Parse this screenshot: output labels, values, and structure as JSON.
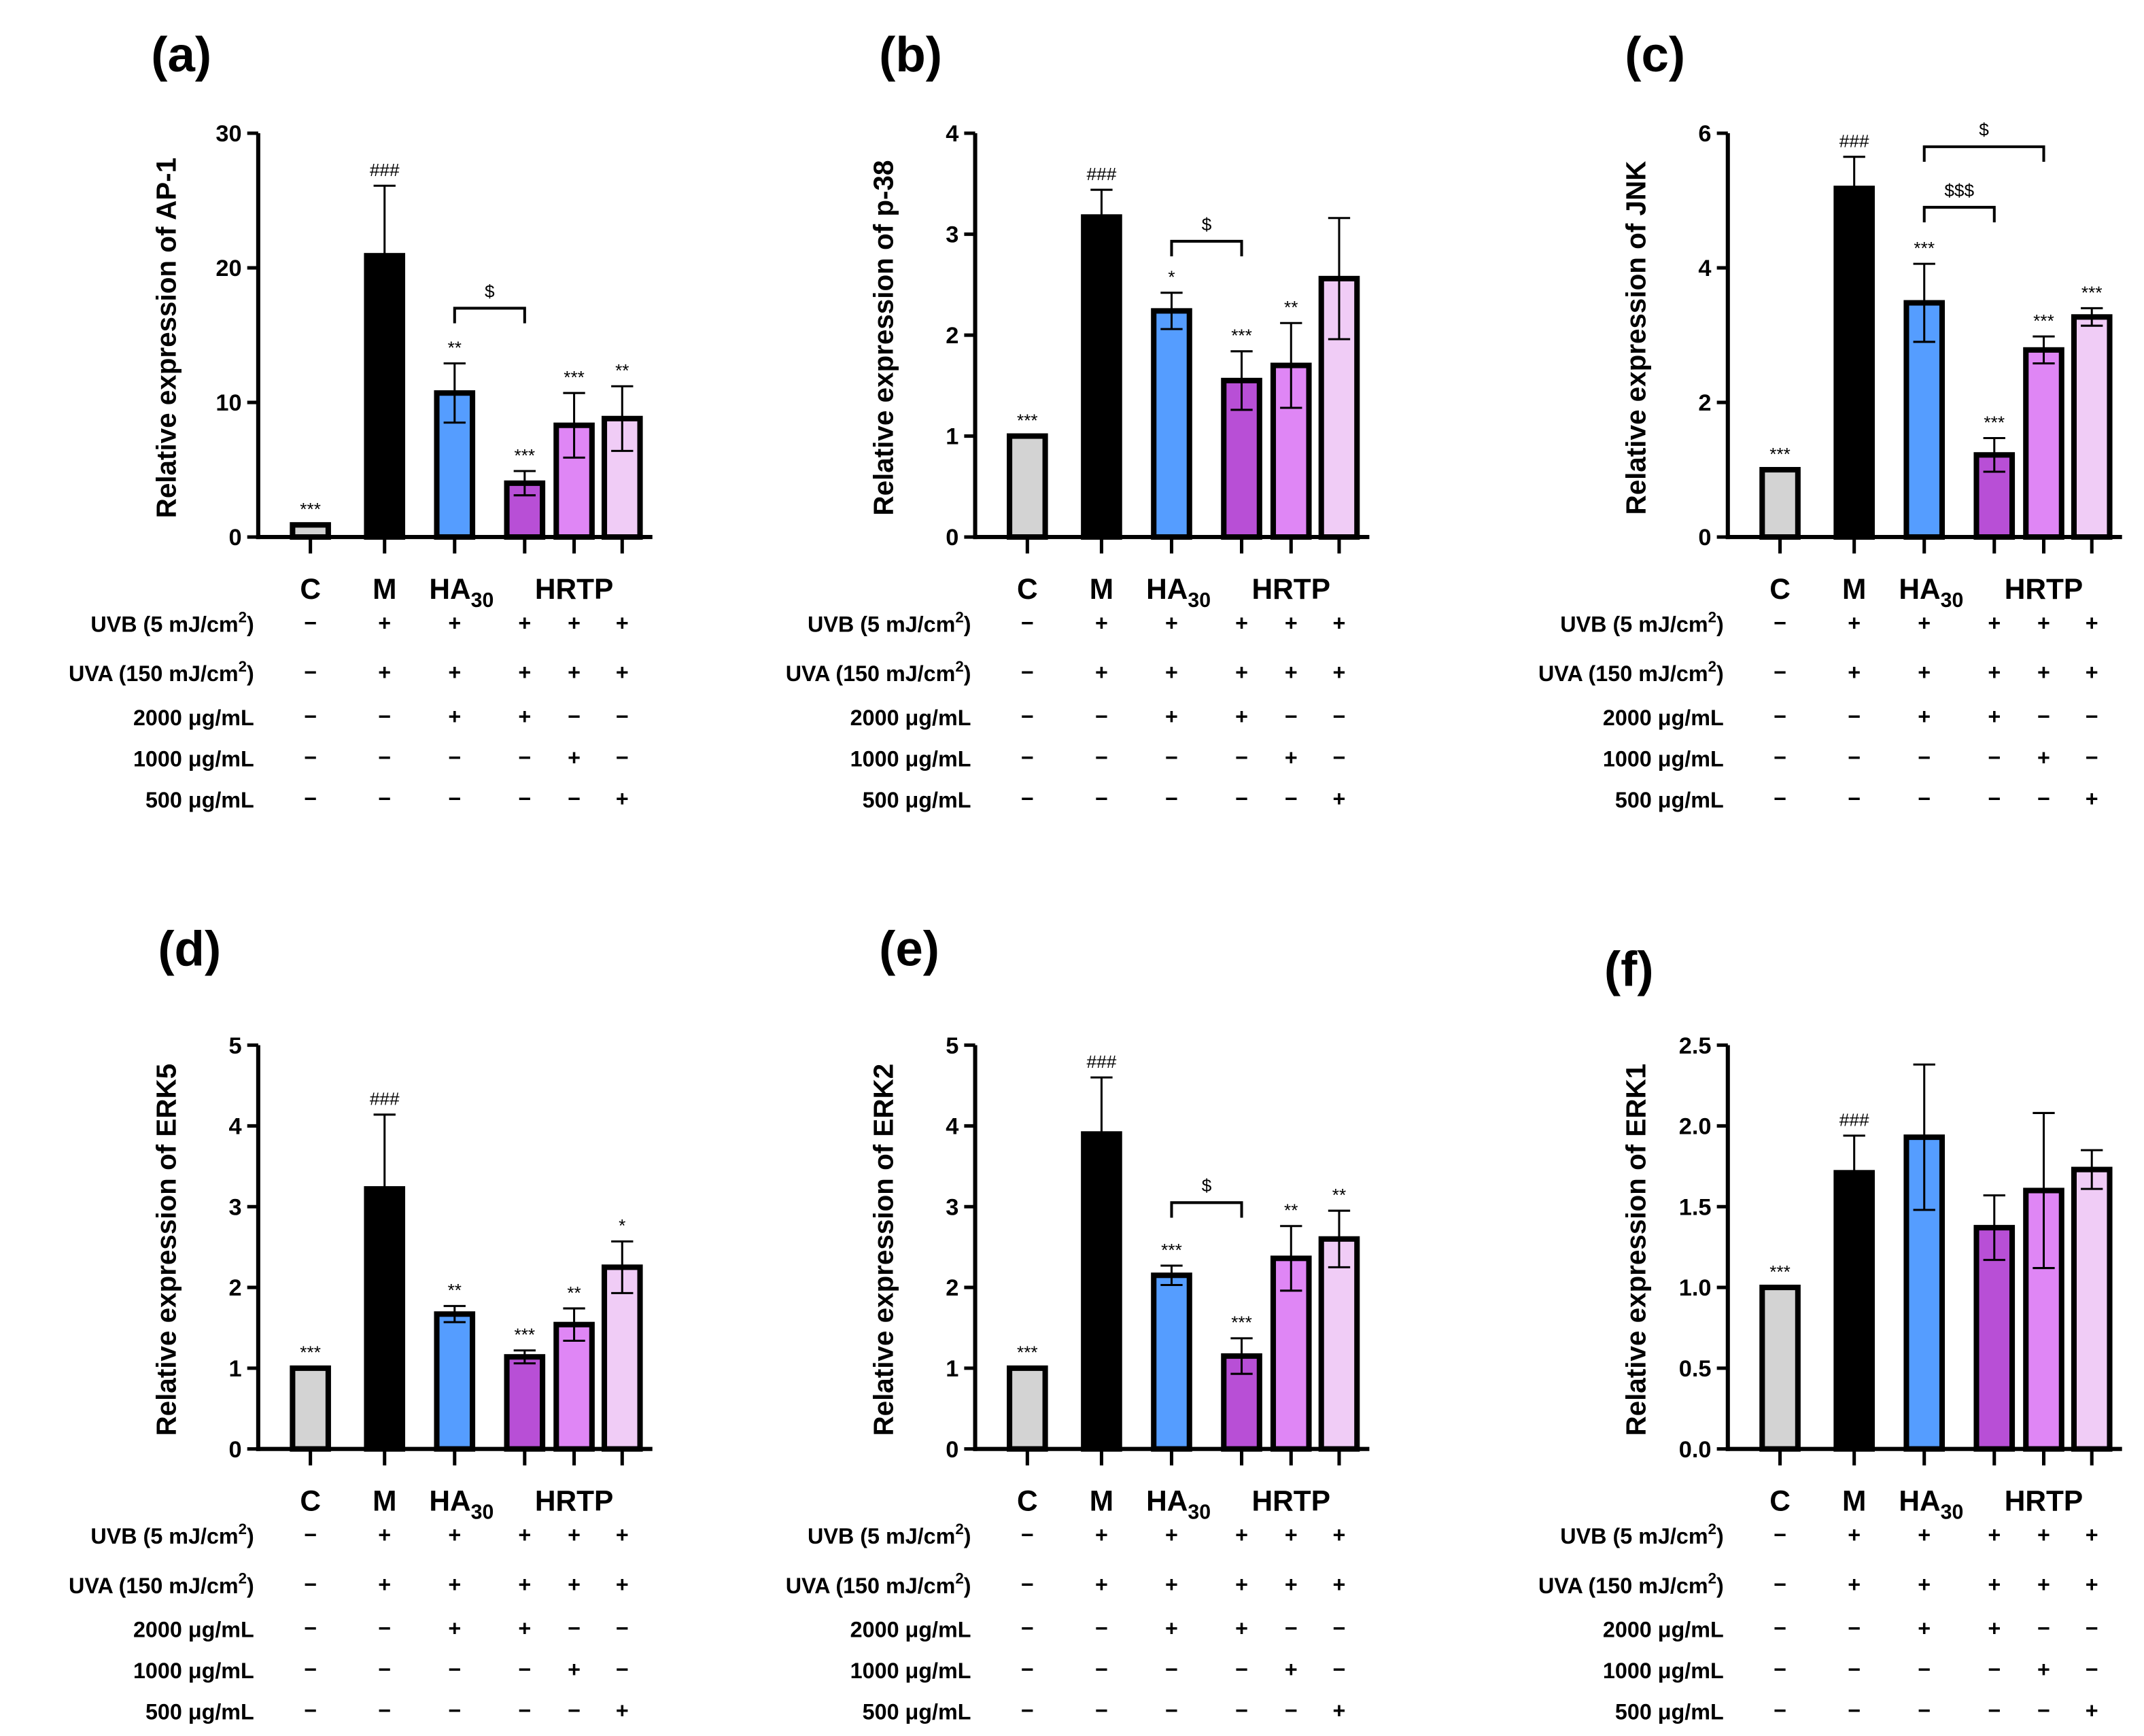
{
  "chart_data": [
    {
      "type": "bar",
      "panel": "(a)",
      "ylabel": "Relative expression of AP-1",
      "ylim": [
        0,
        30
      ],
      "yticks": [
        "0",
        "10",
        "20",
        "30"
      ],
      "values": [
        0.9,
        20.9,
        10.7,
        4.0,
        8.3,
        8.8
      ],
      "errors": [
        0,
        5.2,
        2.2,
        0.9,
        2.4,
        2.4
      ],
      "significance": [
        "***",
        "###",
        "**",
        "***",
        "***",
        "**"
      ],
      "brackets": [
        {
          "from": 2,
          "to": 3,
          "label": "$",
          "y": 17
        }
      ]
    },
    {
      "type": "bar",
      "panel": "(b)",
      "ylabel": "Relative expression of p-38",
      "ylim": [
        0,
        4
      ],
      "yticks": [
        "0",
        "1",
        "2",
        "3",
        "4"
      ],
      "values": [
        1.0,
        3.17,
        2.24,
        1.55,
        1.7,
        2.56
      ],
      "errors": [
        0,
        0.27,
        0.18,
        0.29,
        0.42,
        0.6
      ],
      "significance": [
        "***",
        "###",
        "*",
        "***",
        "**",
        ""
      ],
      "brackets": [
        {
          "from": 2,
          "to": 3,
          "label": "$",
          "y": 2.93
        }
      ]
    },
    {
      "type": "bar",
      "panel": "(c)",
      "ylabel": "Relative expression of JNK",
      "ylim": [
        0,
        6
      ],
      "yticks": [
        "0",
        "2",
        "4",
        "6"
      ],
      "values": [
        1.0,
        5.18,
        3.48,
        1.22,
        2.78,
        3.27
      ],
      "errors": [
        0,
        0.47,
        0.58,
        0.25,
        0.2,
        0.13
      ],
      "significance": [
        "***",
        "###",
        "***",
        "***",
        "***",
        "***"
      ],
      "brackets": [
        {
          "from": 2,
          "to": 3,
          "label": "$$$",
          "y": 4.9
        },
        {
          "from": 2,
          "to": 4,
          "label": "$",
          "y": 5.8
        }
      ]
    },
    {
      "type": "bar",
      "panel": "(d)",
      "ylabel": "Relative expression of ERK5",
      "ylim": [
        0,
        5
      ],
      "yticks": [
        "0",
        "1",
        "2",
        "3",
        "4",
        "5"
      ],
      "values": [
        1.0,
        3.22,
        1.67,
        1.14,
        1.54,
        2.25
      ],
      "errors": [
        0,
        0.92,
        0.1,
        0.08,
        0.2,
        0.32
      ],
      "significance": [
        "***",
        "###",
        "**",
        "***",
        "**",
        "*"
      ],
      "brackets": []
    },
    {
      "type": "bar",
      "panel": "(e)",
      "ylabel": "Relative expression of ERK2",
      "ylim": [
        0,
        5
      ],
      "yticks": [
        "0",
        "1",
        "2",
        "3",
        "4",
        "5"
      ],
      "values": [
        1.0,
        3.9,
        2.15,
        1.15,
        2.36,
        2.6
      ],
      "errors": [
        0,
        0.7,
        0.12,
        0.22,
        0.4,
        0.35
      ],
      "significance": [
        "***",
        "###",
        "***",
        "***",
        "**",
        "**"
      ],
      "brackets": [
        {
          "from": 2,
          "to": 3,
          "label": "$",
          "y": 3.05
        }
      ]
    },
    {
      "type": "bar",
      "panel": "(f)",
      "ylabel": "Relative expression of ERK1",
      "ylim": [
        0,
        2.5
      ],
      "yticks": [
        "0.0",
        "0.5",
        "1.0",
        "1.5",
        "2.0",
        "2.5"
      ],
      "values": [
        1.0,
        1.71,
        1.93,
        1.37,
        1.6,
        1.73
      ],
      "errors": [
        0,
        0.23,
        0.45,
        0.2,
        0.48,
        0.12
      ],
      "significance": [
        "***",
        "###",
        "",
        "",
        "",
        ""
      ],
      "brackets": []
    }
  ],
  "groups": {
    "C": "C",
    "M": "M",
    "HA": "HA",
    "HA_sub": "30",
    "HRTP": "HRTP"
  },
  "bar_colors": [
    "#d3d3d3",
    "#000000",
    "#559dff",
    "#b84fd6",
    "#df86f5",
    "#f0ccf6"
  ],
  "treatment_rows": [
    {
      "label": "UVB (5 mJ/cm",
      "sup": "2",
      "close": ")",
      "signs": [
        "−",
        "+",
        "+",
        "+",
        "+",
        "+"
      ]
    },
    {
      "label": "UVA (150 mJ/cm",
      "sup": "2",
      "close": ")",
      "signs": [
        "−",
        "+",
        "+",
        "+",
        "+",
        "+"
      ]
    },
    {
      "label": "2000 μg/mL",
      "sup": "",
      "close": "",
      "signs": [
        "−",
        "−",
        "+",
        "+",
        "−",
        "−"
      ]
    },
    {
      "label": "1000 μg/mL",
      "sup": "",
      "close": "",
      "signs": [
        "−",
        "−",
        "−",
        "−",
        "+",
        "−"
      ]
    },
    {
      "label": "500 μg/mL",
      "sup": "",
      "close": "",
      "signs": [
        "−",
        "−",
        "−",
        "−",
        "−",
        "+"
      ]
    }
  ]
}
